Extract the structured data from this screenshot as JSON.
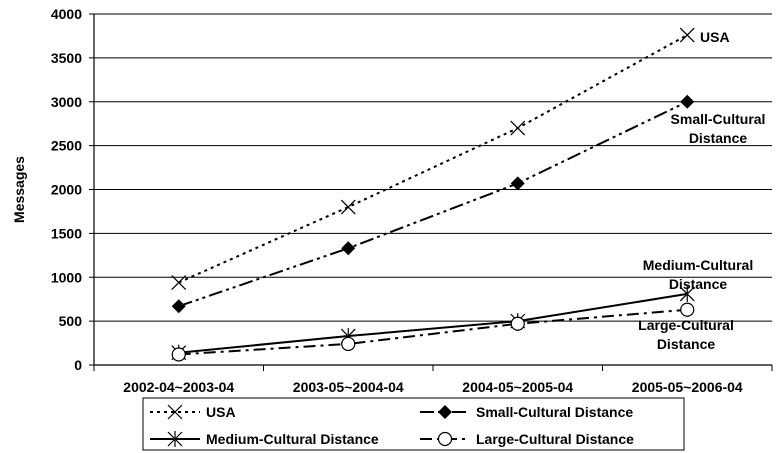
{
  "chart_data": {
    "type": "line",
    "ylabel": "Messages",
    "xlabel": "",
    "ylim": [
      0,
      4000
    ],
    "yticks": [
      "0",
      "500",
      "1000",
      "1500",
      "2000",
      "2500",
      "3000",
      "3500",
      "4000"
    ],
    "grid": true,
    "legend_position": "bottom",
    "categories": [
      "2002-04~2003-04",
      "2003-05~2004-04",
      "2004-05~2005-04",
      "2005-05~2006-04"
    ],
    "series": [
      {
        "name": "USA",
        "values": [
          940,
          1800,
          2700,
          3760
        ],
        "marker": "x",
        "line": "dotted",
        "annotation": [
          "USA"
        ]
      },
      {
        "name": "Small-Cultural Distance",
        "values": [
          670,
          1330,
          2070,
          3000
        ],
        "marker": "diamond",
        "line": "dash-dot-dot",
        "annotation": [
          "Small-Cultural",
          "Distance"
        ]
      },
      {
        "name": "Medium-Cultural Distance",
        "values": [
          140,
          330,
          500,
          810
        ],
        "marker": "asterisk",
        "line": "solid",
        "annotation": [
          "Medium-Cultural",
          "Distance"
        ]
      },
      {
        "name": "Large-Cultural Distance",
        "values": [
          120,
          240,
          470,
          630
        ],
        "marker": "circle",
        "line": "dash-dot",
        "annotation": [
          "Large-Cultural",
          "Distance"
        ]
      }
    ]
  }
}
